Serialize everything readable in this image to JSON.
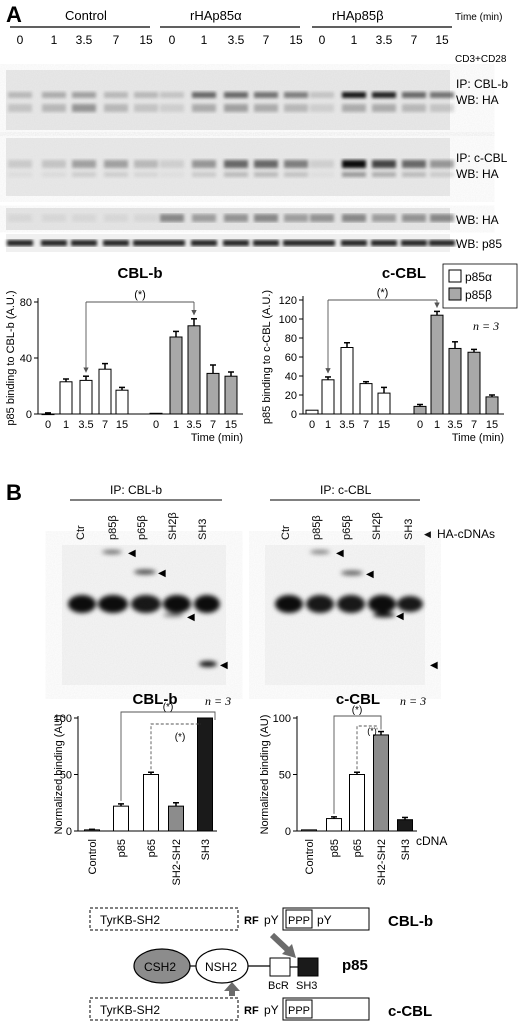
{
  "panel_a": {
    "letter": "A",
    "groups": [
      "Control",
      "rHAp85α",
      "rHAp85β"
    ],
    "time_header": "Time (min)",
    "stim_label": "CD3+CD28",
    "time_points": [
      "0",
      "1",
      "3.5",
      "7",
      "15"
    ],
    "blot_labels": {
      "ip_cblb": "IP: CBL-b",
      "wb_ha_1": "WB: HA",
      "ip_ccbl": "IP: c-CBL",
      "wb_ha_2": "WB: HA",
      "wb_ha_3": "WB: HA",
      "wb_p85": "WB: p85"
    },
    "legend": [
      "p85α",
      "p85β"
    ],
    "n_label": "n = 3",
    "sig_label": "(*)"
  },
  "panel_b": {
    "letter": "B",
    "ip_cblb": "IP: CBL-b",
    "ip_ccbl": "IP: c-CBL",
    "lanes": [
      "Ctr",
      "p85β",
      "p65β",
      "SH2β",
      "SH3"
    ],
    "ha_cdnas": "HA-cDNAs",
    "n_label": "n = 3",
    "sig_label": "(*)",
    "cdna_label": "cDNA"
  },
  "diagram": {
    "tyrkb": "TyrKB-SH2",
    "rf": "RF",
    "py": "pY",
    "ppp": "PPP",
    "cblb": "CBL-b",
    "ccbl": "c-CBL",
    "csh2": "CSH2",
    "nsh2": "NSH2",
    "bcr": "BcR",
    "sh3": "SH3",
    "p85": "p85"
  },
  "chart_data": [
    {
      "type": "bar",
      "title": "CBL-b",
      "ylabel": "p85 binding to CBL-b (A.U.)",
      "xlabel": "Time (min)",
      "ylim": [
        0,
        80
      ],
      "yticks": [
        0,
        40,
        80
      ],
      "categories": [
        "0",
        "1",
        "3.5",
        "7",
        "15"
      ],
      "series": [
        {
          "name": "p85α",
          "values": [
            0,
            23,
            24,
            32,
            17
          ],
          "errors": [
            0.8,
            2,
            3,
            4,
            2
          ]
        },
        {
          "name": "p85β",
          "values": [
            0.5,
            55,
            63,
            29,
            27
          ],
          "errors": [
            0.5,
            4,
            5,
            6,
            3
          ]
        }
      ],
      "significance": {
        "label": "(*)",
        "from": [
          "p85α",
          "3.5"
        ],
        "to": [
          "p85β",
          "3.5"
        ]
      }
    },
    {
      "type": "bar",
      "title": "c-CBL",
      "ylabel": "p85 binding to c-CBL (A.U.)",
      "xlabel": "Time (min)",
      "ylim": [
        0,
        120
      ],
      "yticks": [
        0,
        20,
        40,
        60,
        80,
        100,
        120
      ],
      "categories": [
        "0",
        "1",
        "3.5",
        "7",
        "15"
      ],
      "series": [
        {
          "name": "p85α",
          "values": [
            4,
            36,
            70,
            32,
            22
          ],
          "errors": [
            0.5,
            3,
            5,
            2,
            6
          ]
        },
        {
          "name": "p85β",
          "values": [
            8,
            104,
            69,
            65,
            18
          ],
          "errors": [
            2,
            4,
            7,
            3,
            2
          ]
        }
      ],
      "significance": {
        "label": "(*)",
        "from": [
          "p85α",
          "1"
        ],
        "to": [
          "p85β",
          "1"
        ]
      }
    },
    {
      "type": "bar",
      "title": "CBL-b",
      "ylabel": "Normalized binding (AU)",
      "xlabel": "",
      "ylim": [
        0,
        100
      ],
      "yticks": [
        0,
        50,
        100
      ],
      "categories": [
        "Control",
        "p85",
        "p65",
        "SH2-SH2",
        "SH3"
      ],
      "values": [
        1,
        22,
        50,
        22,
        100
      ],
      "errors": [
        0.5,
        2,
        2,
        3,
        0
      ],
      "colors": [
        "#ffffff",
        "#ffffff",
        "#ffffff",
        "#8c8c8c",
        "#1a1a1a"
      ]
    },
    {
      "type": "bar",
      "title": "c-CBL",
      "ylabel": "Normalized binding (AU)",
      "xlabel": "cDNA",
      "ylim": [
        0,
        100
      ],
      "yticks": [
        0,
        50,
        100
      ],
      "categories": [
        "Control",
        "p85",
        "p65",
        "SH2-SH2",
        "SH3"
      ],
      "values": [
        1,
        11,
        50,
        85,
        10
      ],
      "errors": [
        0.3,
        1.5,
        2,
        3,
        2
      ],
      "colors": [
        "#ffffff",
        "#ffffff",
        "#ffffff",
        "#8c8c8c",
        "#1a1a1a"
      ]
    }
  ]
}
